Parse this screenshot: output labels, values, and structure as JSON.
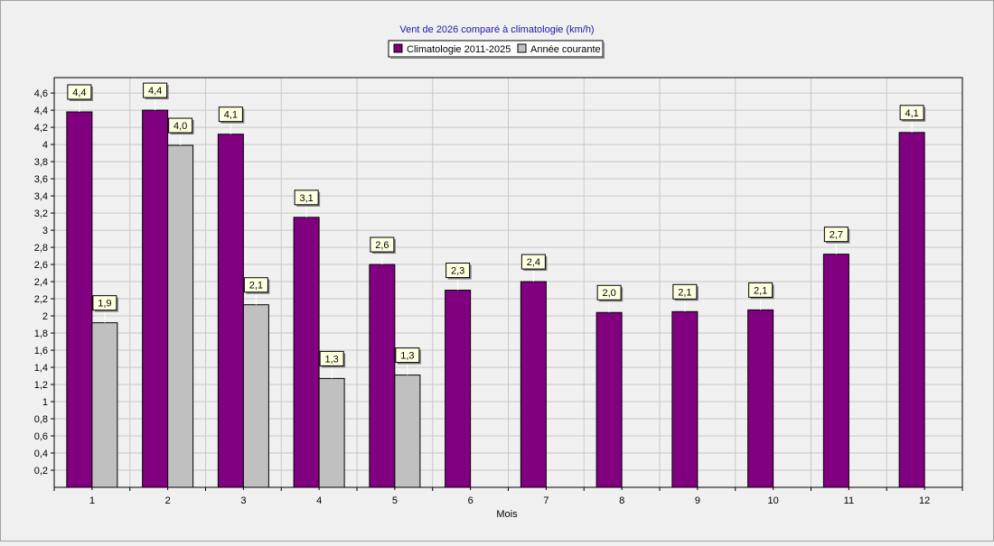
{
  "chart_data": {
    "type": "bar",
    "title": "Vent de 2026 comparé à climatologie (km/h)",
    "xlabel": "Mois",
    "ylabel": "",
    "categories": [
      "1",
      "2",
      "3",
      "4",
      "5",
      "6",
      "7",
      "8",
      "9",
      "10",
      "11",
      "12"
    ],
    "series": [
      {
        "name": "Climatologie 2011-2025",
        "color": "#800080",
        "values": [
          4.38,
          4.4,
          4.12,
          3.15,
          2.6,
          2.3,
          2.4,
          2.04,
          2.05,
          2.07,
          2.72,
          4.14
        ],
        "labels": [
          "4,4",
          "4,4",
          "4,1",
          "3,1",
          "2,6",
          "2,3",
          "2,4",
          "2,0",
          "2,1",
          "2,1",
          "2,7",
          "4,1"
        ]
      },
      {
        "name": "Année courante",
        "color": "#c0c0c0",
        "values": [
          1.92,
          3.99,
          2.13,
          1.27,
          1.31,
          null,
          null,
          null,
          null,
          null,
          null,
          null
        ],
        "labels": [
          "1,9",
          "4,0",
          "2,1",
          "1,3",
          "1,3",
          "",
          "",
          "",
          "",
          "",
          "",
          ""
        ]
      }
    ],
    "ylim": [
      0,
      4.78
    ],
    "yticks": [
      "0,2",
      "0,4",
      "0,6",
      "0,8",
      "1",
      "1,2",
      "1,4",
      "1,6",
      "1,8",
      "2",
      "2,2",
      "2,4",
      "2,6",
      "2,8",
      "3",
      "3,2",
      "3,4",
      "3,6",
      "3,8",
      "4",
      "4,2",
      "4,4",
      "4,6"
    ],
    "ytick_values": [
      0.2,
      0.4,
      0.6,
      0.8,
      1.0,
      1.2,
      1.4,
      1.6,
      1.8,
      2.0,
      2.2,
      2.4,
      2.6,
      2.8,
      3.0,
      3.2,
      3.4,
      3.6,
      3.8,
      4.0,
      4.2,
      4.4,
      4.6
    ],
    "grid": true,
    "legend": "top-center",
    "colors": {
      "title": "#1a1aa8",
      "plot_background": "#f0f0f0",
      "grid": "#c8c8c8",
      "label_box": "#ffffe1"
    }
  }
}
